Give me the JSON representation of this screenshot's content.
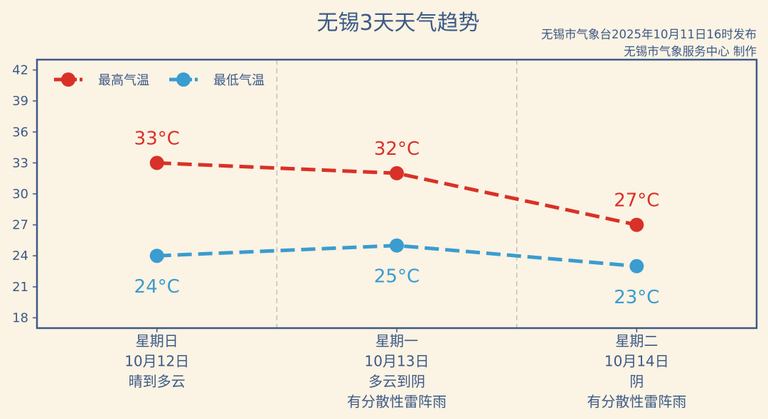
{
  "chart_data": {
    "type": "line",
    "title": "无锡3天天气趋势",
    "subtitle_lines": [
      "无锡市气象台2025年10月11日16时发布",
      "无锡市气象服务中心 制作"
    ],
    "categories": [
      [
        "星期日",
        "10月12日",
        "晴到多云"
      ],
      [
        "星期一",
        "10月13日",
        "多云到阴",
        "有分散性雷阵雨"
      ],
      [
        "星期二",
        "10月14日",
        "阴",
        "有分散性雷阵雨"
      ]
    ],
    "series": [
      {
        "name": "最高气温",
        "values": [
          33,
          32,
          27
        ],
        "labels": [
          "33°C",
          "32°C",
          "27°C"
        ],
        "color": "#d93127"
      },
      {
        "name": "最低气温",
        "values": [
          24,
          25,
          23
        ],
        "labels": [
          "24°C",
          "25°C",
          "23°C"
        ],
        "color": "#3a9ccf"
      }
    ],
    "yticks": [
      18,
      21,
      24,
      27,
      30,
      33,
      36,
      39,
      42
    ],
    "ylim": [
      17,
      43
    ],
    "xlim": [
      -0.5,
      2.5
    ],
    "legend": "top-left",
    "grid": "vertical dashed separators between days",
    "colors": {
      "text": "#3d5a86",
      "axis": "#3d5a86",
      "background": "#fbf3e4"
    }
  }
}
